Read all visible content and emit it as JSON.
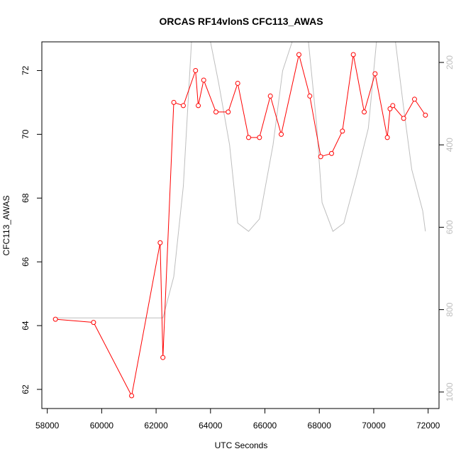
{
  "chart_data": {
    "type": "line",
    "title": "ORCAS RF14vlonS CFC113_AWAS",
    "xlabel": "UTC Seconds",
    "ylabel": "CFC113_AWAS",
    "xlim": [
      57800,
      72400
    ],
    "ylim": [
      61.4,
      72.9
    ],
    "y2lim": [
      1040,
      150
    ],
    "x_ticks": [
      58000,
      60000,
      62000,
      64000,
      66000,
      68000,
      70000,
      72000
    ],
    "y_ticks": [
      62,
      64,
      66,
      68,
      70,
      72
    ],
    "y2_ticks": [
      200,
      400,
      600,
      800,
      1000
    ],
    "colors": {
      "primary": "#ff0000",
      "secondary": "#bebebe"
    },
    "series": [
      {
        "axis": "left",
        "style": "line+open-circle",
        "x": [
          58300,
          59700,
          61100,
          62150,
          62250,
          62650,
          63000,
          63450,
          63550,
          63750,
          64200,
          64650,
          65000,
          65400,
          65800,
          66200,
          66600,
          67250,
          67650,
          68050,
          68450,
          68850,
          69250,
          69650,
          70050,
          70500,
          70600,
          70700,
          71100,
          71500,
          71900
        ],
        "y": [
          64.2,
          64.1,
          61.8,
          66.6,
          63.0,
          71.0,
          70.9,
          72.0,
          70.9,
          71.7,
          70.7,
          70.7,
          71.6,
          69.9,
          69.9,
          71.2,
          70.0,
          72.5,
          71.2,
          69.3,
          69.4,
          70.1,
          72.5,
          70.7,
          71.9,
          69.9,
          70.8,
          70.9,
          70.5,
          71.1,
          70.6
        ]
      },
      {
        "axis": "right",
        "style": "line",
        "x": [
          58300,
          62250,
          62650,
          63000,
          63300,
          64000,
          64300,
          64700,
          65000,
          65400,
          65800,
          66300,
          66650,
          67000,
          67300,
          67600,
          67900,
          68100,
          68500,
          68900,
          69350,
          69800,
          70100,
          70400,
          70800,
          71100,
          71400,
          71800,
          71900
        ],
        "y": [
          820,
          820,
          720,
          500,
          150,
          150,
          250,
          400,
          590,
          610,
          580,
          400,
          220,
          150,
          150,
          150,
          350,
          540,
          610,
          590,
          480,
          360,
          150,
          150,
          150,
          310,
          460,
          560,
          610
        ]
      }
    ]
  }
}
